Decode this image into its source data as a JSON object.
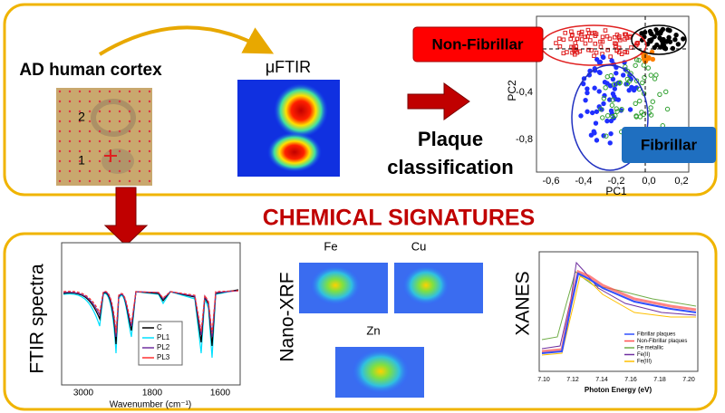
{
  "top_panel": {
    "sample_title": "AD human cortex",
    "sample_labels": [
      "2",
      "1"
    ],
    "method": "μFTIR",
    "step": [
      "Plaque",
      "classification"
    ],
    "classes": {
      "non_fibrillar": "Non-Fibrillar",
      "fibrillar": "Fibrillar"
    },
    "pca_plot": {
      "x_label": "PC1",
      "y_label": "PC2",
      "x_ticks": [
        "-0,6",
        "-0,4",
        "-0,2",
        "0,0",
        "0,2"
      ],
      "y_ticks": [
        "-0,4",
        "-0,8"
      ]
    }
  },
  "section_title": "CHEMICAL SIGNATURES",
  "ftir": {
    "title": "FTIR spectra",
    "x_label": "Wavenumber (cm⁻¹)",
    "x_ticks": [
      "3000",
      "1800",
      "1600"
    ],
    "legend": [
      "C",
      "PL1",
      "PL2",
      "PL3"
    ]
  },
  "xrf": {
    "title": "Nano-XRF",
    "maps": [
      "Fe",
      "Cu",
      "Zn"
    ]
  },
  "xanes": {
    "title": "XANES",
    "x_label": "Photon Energy (eV)",
    "x_ticks": [
      "7.10",
      "7.12",
      "7.14",
      "7.16",
      "7.18",
      "7.20"
    ],
    "legend": [
      "Fibrillar plaques",
      "Non-Fibrillar plaques",
      "Fe metallic",
      "Fe(II)",
      "Fe(III)"
    ]
  }
}
